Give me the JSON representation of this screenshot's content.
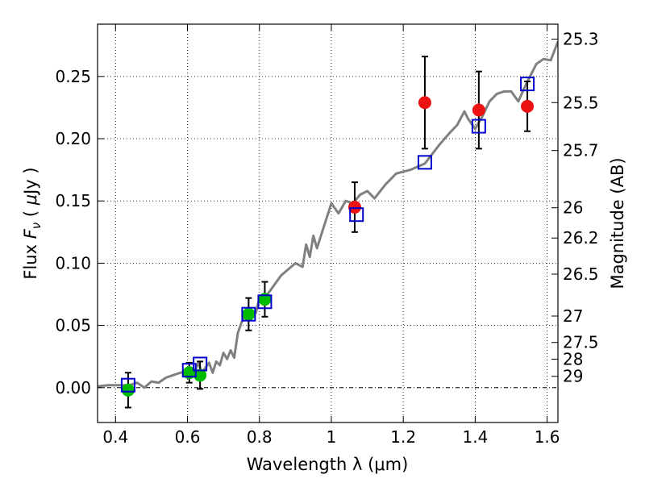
{
  "chart_data": {
    "type": "scatter",
    "xlabel": "Wavelength  λ (μm)",
    "ylabel_parts": [
      "Flux ",
      "F",
      "ν",
      "  ( ",
      "μ",
      "Jy )"
    ],
    "y2label": "Magnitude (AB)",
    "xlim": [
      0.35,
      1.63
    ],
    "ylim": [
      -0.028,
      0.292
    ],
    "grid": true,
    "x_ticks": [
      0.4,
      0.6,
      0.8,
      1.0,
      1.2,
      1.4,
      1.6
    ],
    "x_tick_labels": [
      "0.4",
      "0.6",
      "0.8",
      "1",
      "1.2",
      "1.4",
      "1.6"
    ],
    "y_ticks": [
      0.0,
      0.05,
      0.1,
      0.15,
      0.2,
      0.25
    ],
    "y_tick_labels": [
      "0.00",
      "0.05",
      "0.10",
      "0.15",
      "0.20",
      "0.25"
    ],
    "mag_ticks": [
      {
        "label": "25.3",
        "flux": 0.28
      },
      {
        "label": "25.5",
        "flux": 0.229
      },
      {
        "label": "25.7",
        "flux": 0.1905
      },
      {
        "label": "26",
        "flux": 0.1445
      },
      {
        "label": "26.2",
        "flux": 0.1202
      },
      {
        "label": "26.5",
        "flux": 0.0912
      },
      {
        "label": "27",
        "flux": 0.0575
      },
      {
        "label": "27.5",
        "flux": 0.0363
      },
      {
        "label": "28",
        "flux": 0.0229
      },
      {
        "label": "29",
        "flux": 0.0091
      }
    ],
    "colors": {
      "model_line": "#808080",
      "model_squares": "#0000cc",
      "green_points": "#00bb00",
      "red_points": "#ee1111",
      "errorbars": "#000000",
      "zero_line": "#000000"
    },
    "model_spectrum": [
      [
        0.35,
        0.001
      ],
      [
        0.38,
        0.002
      ],
      [
        0.42,
        0.002
      ],
      [
        0.44,
        0.002
      ],
      [
        0.46,
        0.004
      ],
      [
        0.48,
        0.0
      ],
      [
        0.5,
        0.005
      ],
      [
        0.52,
        0.004
      ],
      [
        0.54,
        0.008
      ],
      [
        0.56,
        0.01
      ],
      [
        0.58,
        0.012
      ],
      [
        0.6,
        0.013
      ],
      [
        0.61,
        0.015
      ],
      [
        0.62,
        0.013
      ],
      [
        0.63,
        0.02
      ],
      [
        0.64,
        0.012
      ],
      [
        0.65,
        0.016
      ],
      [
        0.66,
        0.02
      ],
      [
        0.67,
        0.012
      ],
      [
        0.68,
        0.021
      ],
      [
        0.69,
        0.018
      ],
      [
        0.7,
        0.028
      ],
      [
        0.71,
        0.023
      ],
      [
        0.72,
        0.03
      ],
      [
        0.73,
        0.024
      ],
      [
        0.74,
        0.044
      ],
      [
        0.75,
        0.052
      ],
      [
        0.76,
        0.058
      ],
      [
        0.77,
        0.055
      ],
      [
        0.78,
        0.062
      ],
      [
        0.79,
        0.06
      ],
      [
        0.8,
        0.072
      ],
      [
        0.81,
        0.068
      ],
      [
        0.82,
        0.074
      ],
      [
        0.84,
        0.082
      ],
      [
        0.86,
        0.09
      ],
      [
        0.88,
        0.095
      ],
      [
        0.9,
        0.1
      ],
      [
        0.92,
        0.097
      ],
      [
        0.93,
        0.115
      ],
      [
        0.94,
        0.105
      ],
      [
        0.95,
        0.122
      ],
      [
        0.96,
        0.112
      ],
      [
        0.98,
        0.13
      ],
      [
        1.0,
        0.148
      ],
      [
        1.02,
        0.14
      ],
      [
        1.04,
        0.15
      ],
      [
        1.06,
        0.148
      ],
      [
        1.08,
        0.155
      ],
      [
        1.1,
        0.158
      ],
      [
        1.12,
        0.152
      ],
      [
        1.15,
        0.163
      ],
      [
        1.18,
        0.172
      ],
      [
        1.22,
        0.175
      ],
      [
        1.26,
        0.18
      ],
      [
        1.3,
        0.195
      ],
      [
        1.33,
        0.205
      ],
      [
        1.35,
        0.211
      ],
      [
        1.37,
        0.222
      ],
      [
        1.38,
        0.216
      ],
      [
        1.4,
        0.208
      ],
      [
        1.42,
        0.218
      ],
      [
        1.44,
        0.23
      ],
      [
        1.46,
        0.236
      ],
      [
        1.48,
        0.238
      ],
      [
        1.5,
        0.238
      ],
      [
        1.52,
        0.23
      ],
      [
        1.54,
        0.243
      ],
      [
        1.57,
        0.26
      ],
      [
        1.59,
        0.264
      ],
      [
        1.61,
        0.263
      ],
      [
        1.63,
        0.278
      ]
    ],
    "model_points": [
      {
        "x": 0.435,
        "y": 0.002
      },
      {
        "x": 0.605,
        "y": 0.014
      },
      {
        "x": 0.635,
        "y": 0.019
      },
      {
        "x": 0.77,
        "y": 0.059
      },
      {
        "x": 0.815,
        "y": 0.069
      },
      {
        "x": 1.07,
        "y": 0.139
      },
      {
        "x": 1.26,
        "y": 0.181
      },
      {
        "x": 1.41,
        "y": 0.21
      },
      {
        "x": 1.545,
        "y": 0.244
      }
    ],
    "observed_green": [
      {
        "x": 0.435,
        "y": -0.002,
        "err": 0.014
      },
      {
        "x": 0.605,
        "y": 0.012,
        "err": 0.008
      },
      {
        "x": 0.635,
        "y": 0.01,
        "err": 0.011
      },
      {
        "x": 0.77,
        "y": 0.059,
        "err": 0.013
      },
      {
        "x": 0.815,
        "y": 0.071,
        "err": 0.014
      }
    ],
    "observed_red": [
      {
        "x": 1.065,
        "y": 0.145,
        "err": 0.02
      },
      {
        "x": 1.26,
        "y": 0.229,
        "err": 0.037
      },
      {
        "x": 1.41,
        "y": 0.223,
        "err": 0.031
      },
      {
        "x": 1.545,
        "y": 0.226,
        "err": 0.02
      }
    ]
  }
}
